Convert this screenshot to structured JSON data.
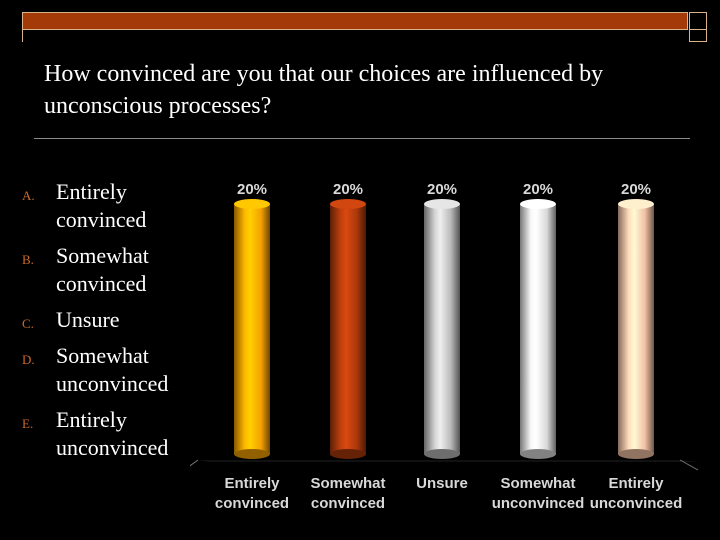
{
  "slide": {
    "title": "How convinced are you that our choices are influenced by unconscious processes?",
    "options": [
      {
        "letter": "A.",
        "text": "Entirely convinced"
      },
      {
        "letter": "B.",
        "text": "Somewhat convinced"
      },
      {
        "letter": "C.",
        "text": "Unsure"
      },
      {
        "letter": "D.",
        "text": "Somewhat unconvinced"
      },
      {
        "letter": "E.",
        "text": "Entirely unconvinced"
      }
    ]
  },
  "colors": {
    "accent_bar": "#a33a08",
    "bars": [
      "#f5a000",
      "#a8380c",
      "#b8b8b8",
      "#d8d8d8",
      "#f2c0a4"
    ]
  },
  "chart_data": {
    "type": "bar",
    "categories": [
      [
        "Entirely",
        "convinced"
      ],
      [
        "Somewhat",
        "convinced"
      ],
      [
        "Unsure"
      ],
      [
        "Somewhat",
        "unconvinced"
      ],
      [
        "Entirely",
        "unconvinced"
      ]
    ],
    "values": [
      20,
      20,
      20,
      20,
      20
    ],
    "value_labels": [
      "20%",
      "20%",
      "20%",
      "20%",
      "20%"
    ],
    "title": "",
    "xlabel": "",
    "ylabel": "",
    "ylim": [
      0,
      20
    ],
    "grid": false,
    "legend": "none"
  }
}
